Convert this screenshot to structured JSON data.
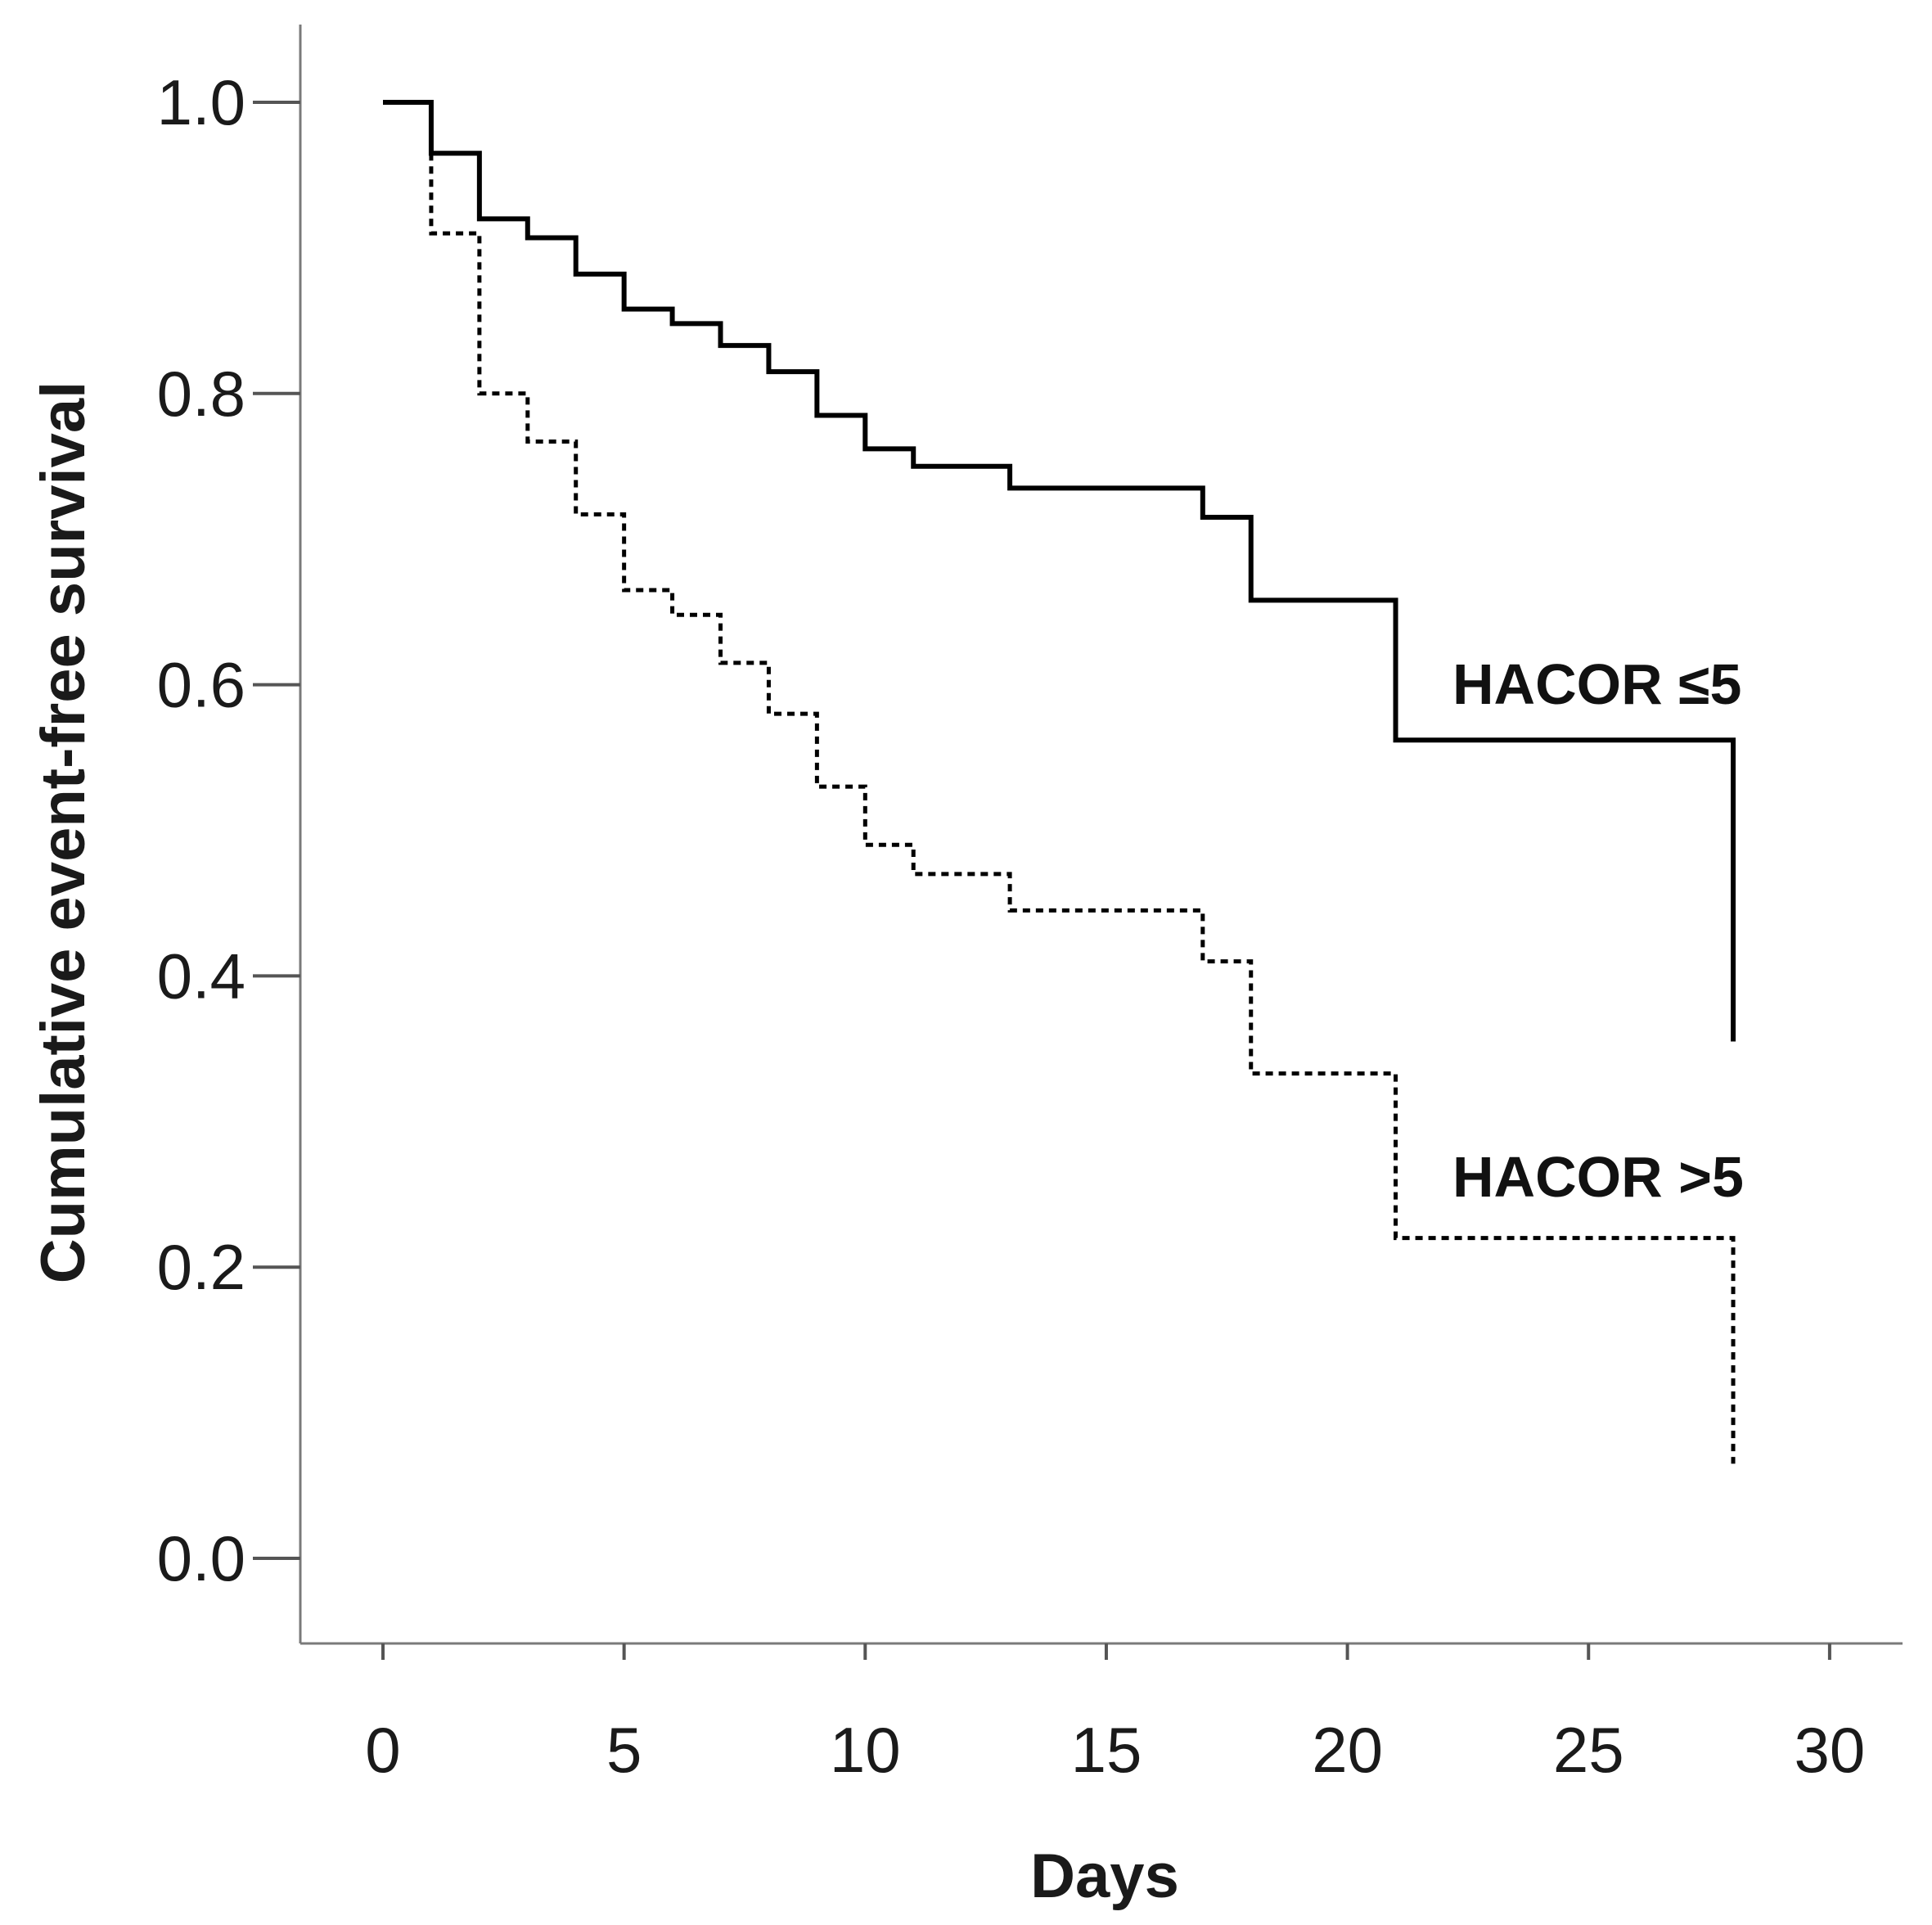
{
  "chart_data": {
    "type": "line",
    "subtype": "kaplan-meier step",
    "xlabel": "Days",
    "ylabel": "Cumulative event-free survival",
    "xlim": [
      -1.7,
      31.7
    ],
    "ylim": [
      -0.05,
      1.05
    ],
    "xticks": [
      0,
      5,
      10,
      15,
      20,
      25,
      30
    ],
    "yticks": [
      0.0,
      0.2,
      0.4,
      0.6,
      0.8,
      1.0
    ],
    "xtick_labels": [
      "0",
      "5",
      "10",
      "15",
      "20",
      "25",
      "30"
    ],
    "ytick_labels": [
      "0.0",
      "0.2",
      "0.4",
      "0.6",
      "0.8",
      "1.0"
    ],
    "grid": false,
    "series": [
      {
        "name": "HACOR ≤5",
        "label": "HACOR ≤5",
        "style": "solid",
        "color": "#000000",
        "x": [
          0,
          1,
          2,
          3,
          4,
          5,
          6,
          7,
          8,
          9,
          10,
          11,
          13,
          17,
          18,
          21,
          28
        ],
        "y": [
          1.0,
          0.965,
          0.92,
          0.907,
          0.882,
          0.858,
          0.848,
          0.833,
          0.815,
          0.785,
          0.762,
          0.75,
          0.735,
          0.715,
          0.658,
          0.562,
          0.355
        ]
      },
      {
        "name": "HACOR >5",
        "label": "HACOR >5",
        "style": "dotted",
        "color": "#000000",
        "x": [
          1,
          2,
          3,
          4,
          5,
          6,
          7,
          8,
          9,
          10,
          11,
          13,
          17,
          18,
          21,
          28
        ],
        "y": [
          0.91,
          0.8,
          0.767,
          0.717,
          0.665,
          0.648,
          0.615,
          0.58,
          0.53,
          0.49,
          0.47,
          0.445,
          0.41,
          0.333,
          0.22,
          0.065
        ]
      }
    ]
  }
}
